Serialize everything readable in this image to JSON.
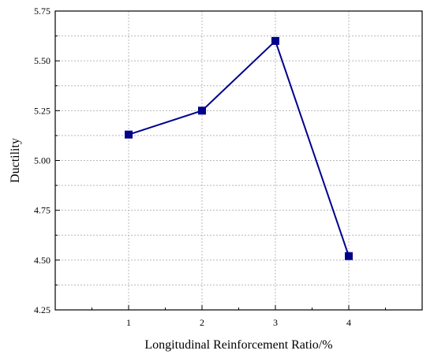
{
  "chart_data": {
    "type": "line",
    "title": "",
    "xlabel": "Longitudinal Reinforcement Ratio/%",
    "ylabel": "Ductility",
    "x": [
      1,
      2,
      3,
      4
    ],
    "xlim": [
      0,
      5
    ],
    "xticks": [
      1,
      2,
      3,
      4
    ],
    "xtick_labels": [
      "1",
      "2",
      "3",
      "4"
    ],
    "ylim": [
      4.25,
      5.75
    ],
    "yticks": [
      4.25,
      4.5,
      4.75,
      5.0,
      5.25,
      5.5,
      5.75
    ],
    "ytick_labels": [
      "4.25",
      "4.50",
      "4.75",
      "5.00",
      "5.25",
      "5.50",
      "5.75"
    ],
    "series": [
      {
        "values": [
          5.13,
          5.25,
          5.6,
          4.52
        ],
        "color": "#00008B",
        "marker": "square"
      }
    ],
    "grid": true,
    "legend": "none"
  }
}
